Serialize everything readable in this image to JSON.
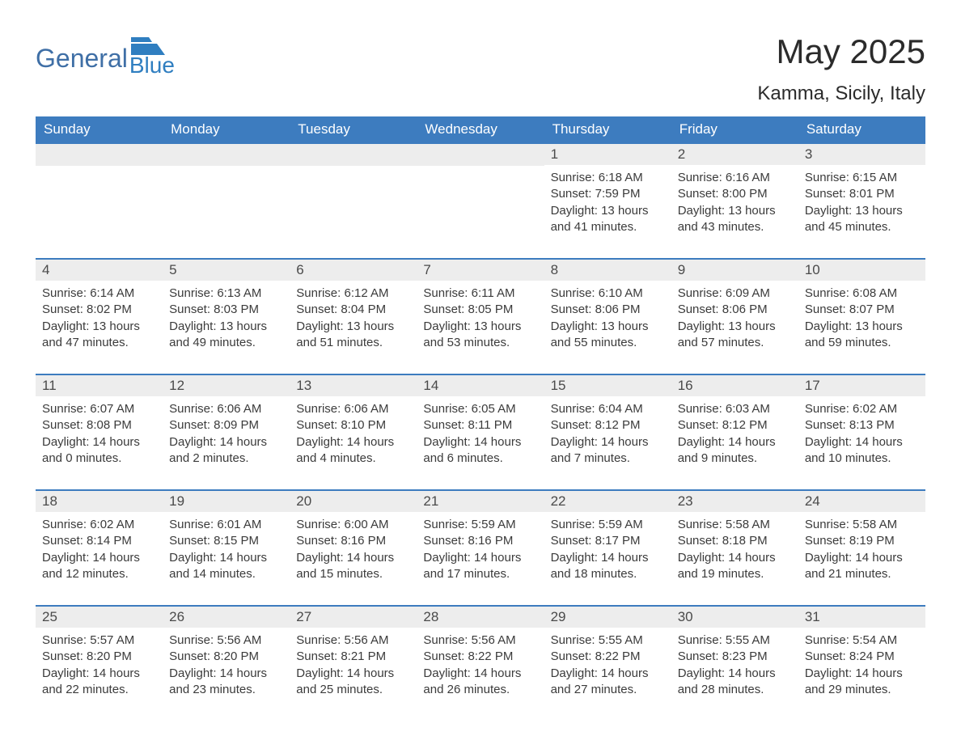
{
  "logo": {
    "word1": "General",
    "word2": "Blue",
    "accent_color": "#2f7ec0",
    "text_color": "#3f6fa6"
  },
  "title": "May 2025",
  "location": "Kamma, Sicily, Italy",
  "colors": {
    "header_bg": "#3d7cbf",
    "header_text": "#ffffff",
    "row_divider": "#3d7cbf",
    "daynum_bg": "#ededed",
    "body_text": "#3b3b3b",
    "page_bg": "#ffffff"
  },
  "typography": {
    "title_fontsize": 42,
    "location_fontsize": 24,
    "header_fontsize": 17,
    "daynum_fontsize": 17,
    "body_fontsize": 15
  },
  "layout": {
    "columns": 7,
    "rows": 5,
    "first_day_column_index": 4
  },
  "weekdays": [
    "Sunday",
    "Monday",
    "Tuesday",
    "Wednesday",
    "Thursday",
    "Friday",
    "Saturday"
  ],
  "labels": {
    "sunrise": "Sunrise",
    "sunset": "Sunset",
    "daylight": "Daylight"
  },
  "days": [
    {
      "n": 1,
      "sunrise": "6:18 AM",
      "sunset": "7:59 PM",
      "daylight": "13 hours and 41 minutes."
    },
    {
      "n": 2,
      "sunrise": "6:16 AM",
      "sunset": "8:00 PM",
      "daylight": "13 hours and 43 minutes."
    },
    {
      "n": 3,
      "sunrise": "6:15 AM",
      "sunset": "8:01 PM",
      "daylight": "13 hours and 45 minutes."
    },
    {
      "n": 4,
      "sunrise": "6:14 AM",
      "sunset": "8:02 PM",
      "daylight": "13 hours and 47 minutes."
    },
    {
      "n": 5,
      "sunrise": "6:13 AM",
      "sunset": "8:03 PM",
      "daylight": "13 hours and 49 minutes."
    },
    {
      "n": 6,
      "sunrise": "6:12 AM",
      "sunset": "8:04 PM",
      "daylight": "13 hours and 51 minutes."
    },
    {
      "n": 7,
      "sunrise": "6:11 AM",
      "sunset": "8:05 PM",
      "daylight": "13 hours and 53 minutes."
    },
    {
      "n": 8,
      "sunrise": "6:10 AM",
      "sunset": "8:06 PM",
      "daylight": "13 hours and 55 minutes."
    },
    {
      "n": 9,
      "sunrise": "6:09 AM",
      "sunset": "8:06 PM",
      "daylight": "13 hours and 57 minutes."
    },
    {
      "n": 10,
      "sunrise": "6:08 AM",
      "sunset": "8:07 PM",
      "daylight": "13 hours and 59 minutes."
    },
    {
      "n": 11,
      "sunrise": "6:07 AM",
      "sunset": "8:08 PM",
      "daylight": "14 hours and 0 minutes."
    },
    {
      "n": 12,
      "sunrise": "6:06 AM",
      "sunset": "8:09 PM",
      "daylight": "14 hours and 2 minutes."
    },
    {
      "n": 13,
      "sunrise": "6:06 AM",
      "sunset": "8:10 PM",
      "daylight": "14 hours and 4 minutes."
    },
    {
      "n": 14,
      "sunrise": "6:05 AM",
      "sunset": "8:11 PM",
      "daylight": "14 hours and 6 minutes."
    },
    {
      "n": 15,
      "sunrise": "6:04 AM",
      "sunset": "8:12 PM",
      "daylight": "14 hours and 7 minutes."
    },
    {
      "n": 16,
      "sunrise": "6:03 AM",
      "sunset": "8:12 PM",
      "daylight": "14 hours and 9 minutes."
    },
    {
      "n": 17,
      "sunrise": "6:02 AM",
      "sunset": "8:13 PM",
      "daylight": "14 hours and 10 minutes."
    },
    {
      "n": 18,
      "sunrise": "6:02 AM",
      "sunset": "8:14 PM",
      "daylight": "14 hours and 12 minutes."
    },
    {
      "n": 19,
      "sunrise": "6:01 AM",
      "sunset": "8:15 PM",
      "daylight": "14 hours and 14 minutes."
    },
    {
      "n": 20,
      "sunrise": "6:00 AM",
      "sunset": "8:16 PM",
      "daylight": "14 hours and 15 minutes."
    },
    {
      "n": 21,
      "sunrise": "5:59 AM",
      "sunset": "8:16 PM",
      "daylight": "14 hours and 17 minutes."
    },
    {
      "n": 22,
      "sunrise": "5:59 AM",
      "sunset": "8:17 PM",
      "daylight": "14 hours and 18 minutes."
    },
    {
      "n": 23,
      "sunrise": "5:58 AM",
      "sunset": "8:18 PM",
      "daylight": "14 hours and 19 minutes."
    },
    {
      "n": 24,
      "sunrise": "5:58 AM",
      "sunset": "8:19 PM",
      "daylight": "14 hours and 21 minutes."
    },
    {
      "n": 25,
      "sunrise": "5:57 AM",
      "sunset": "8:20 PM",
      "daylight": "14 hours and 22 minutes."
    },
    {
      "n": 26,
      "sunrise": "5:56 AM",
      "sunset": "8:20 PM",
      "daylight": "14 hours and 23 minutes."
    },
    {
      "n": 27,
      "sunrise": "5:56 AM",
      "sunset": "8:21 PM",
      "daylight": "14 hours and 25 minutes."
    },
    {
      "n": 28,
      "sunrise": "5:56 AM",
      "sunset": "8:22 PM",
      "daylight": "14 hours and 26 minutes."
    },
    {
      "n": 29,
      "sunrise": "5:55 AM",
      "sunset": "8:22 PM",
      "daylight": "14 hours and 27 minutes."
    },
    {
      "n": 30,
      "sunrise": "5:55 AM",
      "sunset": "8:23 PM",
      "daylight": "14 hours and 28 minutes."
    },
    {
      "n": 31,
      "sunrise": "5:54 AM",
      "sunset": "8:24 PM",
      "daylight": "14 hours and 29 minutes."
    }
  ]
}
